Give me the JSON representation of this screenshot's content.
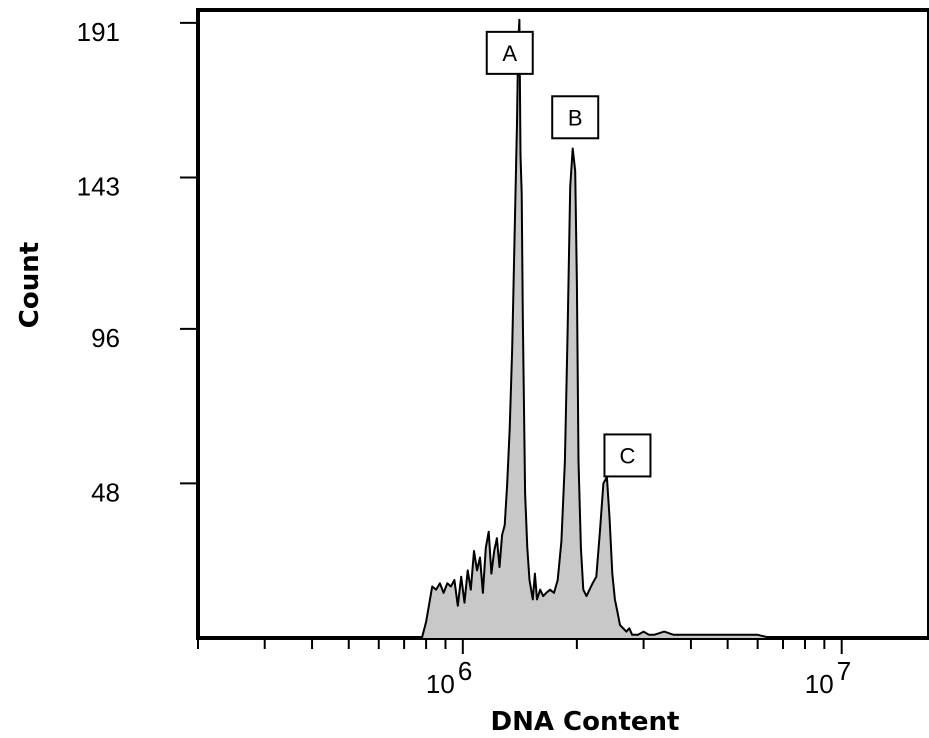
{
  "chart_data": {
    "type": "area",
    "xlabel": "DNA Content",
    "ylabel": "Count",
    "x_scale": "log",
    "xlim": [
      200000,
      17000000
    ],
    "ylim": [
      0,
      195
    ],
    "x_ticks": [
      {
        "value": 1000000,
        "base": "10",
        "exp": "6"
      },
      {
        "value": 10000000,
        "base": "10",
        "exp": "7"
      }
    ],
    "y_ticks": [
      {
        "value": 48,
        "label": "48"
      },
      {
        "value": 96,
        "label": "96"
      },
      {
        "value": 143,
        "label": "143"
      },
      {
        "value": 191,
        "label": "191"
      }
    ],
    "fill_color": "#c8c8c8",
    "line_color": "#000000",
    "series": [
      {
        "x": [
          780000,
          800000,
          830000,
          850000,
          870000,
          890000,
          910000,
          930000,
          950000,
          970000,
          990000,
          1010000,
          1030000,
          1050000,
          1070000,
          1090000,
          1110000,
          1130000,
          1150000,
          1170000,
          1190000,
          1210000,
          1230000,
          1250000,
          1270000,
          1290000,
          1310000,
          1330000,
          1350000,
          1370000,
          1390000,
          1400000,
          1410000,
          1420000,
          1430000,
          1440000,
          1460000,
          1480000,
          1500000,
          1530000,
          1550000,
          1570000,
          1600000,
          1630000,
          1660000,
          1700000,
          1740000,
          1780000,
          1820000,
          1860000,
          1890000,
          1920000,
          1950000,
          1980000,
          2000000,
          2020000,
          2050000,
          2080000,
          2120000,
          2160000,
          2200000,
          2250000,
          2300000,
          2350000,
          2400000,
          2440000,
          2480000,
          2520000,
          2560000,
          2600000,
          2650000,
          2700000,
          2750000,
          2800000,
          2900000,
          3000000,
          3100000,
          3200000,
          3400000,
          3600000,
          3800000,
          4000000,
          4400000,
          4800000,
          5200000,
          5600000,
          6000000,
          6500000,
          7000000,
          8000000,
          17000000
        ],
        "y": [
          0,
          5,
          16,
          15,
          17,
          14,
          17,
          16,
          18,
          10,
          19,
          11,
          21,
          15,
          27,
          21,
          25,
          14,
          28,
          33,
          20,
          27,
          31,
          22,
          32,
          35,
          48,
          65,
          90,
          125,
          160,
          185,
          192,
          150,
          138,
          100,
          45,
          28,
          18,
          12,
          20,
          12,
          15,
          13,
          14,
          15,
          14,
          18,
          30,
          55,
          95,
          140,
          152,
          145,
          110,
          55,
          28,
          15,
          13,
          15,
          17,
          19,
          33,
          48,
          50,
          37,
          20,
          12,
          8,
          4,
          3,
          2,
          3,
          1,
          1,
          2,
          1,
          1,
          2,
          1,
          1,
          1,
          1,
          1,
          1,
          1,
          1,
          0,
          0,
          0,
          0
        ]
      }
    ],
    "annotations": [
      {
        "label": "A",
        "x": 1330000,
        "y": 182
      },
      {
        "label": "B",
        "x": 1980000,
        "y": 162
      },
      {
        "label": "C",
        "x": 2720000,
        "y": 57
      }
    ]
  }
}
